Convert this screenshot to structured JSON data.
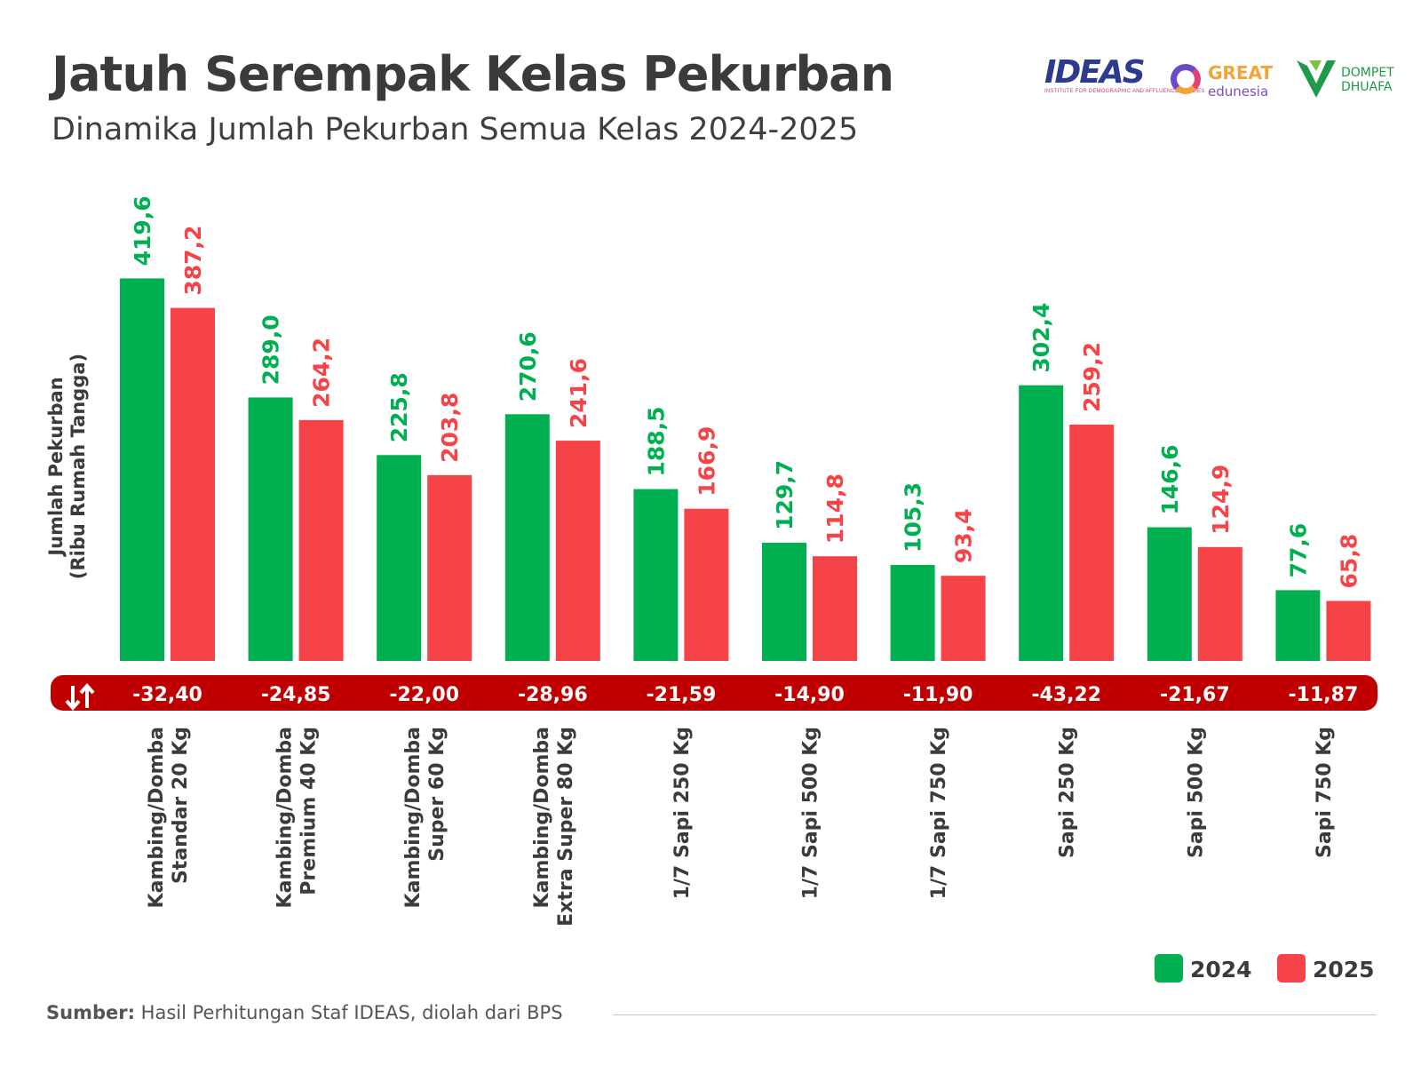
{
  "header": {
    "title": "Jatuh Serempak Kelas Pekurban",
    "subtitle": "Dinamika Jumlah Pekurban Semua Kelas 2024-2025"
  },
  "logos": {
    "ideas": "IDEAS",
    "ideas_sub": "INSTITUTE FOR DEMOGRAPHIC AND AFFLUENCE STUDIES",
    "great": "GREAT",
    "great_sub": "edunesia",
    "dd_line1": "DOMPET",
    "dd_line2": "DHUAFA"
  },
  "footer": {
    "source_label": "Sumber:",
    "source_text": " Hasil Perhitungan Staf IDEAS, diolah dari BPS"
  },
  "colors": {
    "series_2024": "#00b050",
    "series_2025": "#f64347",
    "diff_band": "#c00000",
    "text_dark": "#3b3b3b"
  },
  "chart_data": {
    "type": "bar",
    "ylabel": "Jumlah Pekurban (Ribu Rumah Tangga)",
    "ylabel_lines": [
      "Jumlah Pekurban",
      "(Ribu Rumah Tangga)"
    ],
    "categories": [
      "Kambing/Domba Standar 20 Kg",
      "Kambing/Domba Premium 40 Kg",
      "Kambing/Domba Super 60 Kg",
      "Kambing/Domba Extra Super 80 Kg",
      "1/7 Sapi 250 Kg",
      "1/7 Sapi 500 Kg",
      "1/7 Sapi 750 Kg",
      "Sapi 250 Kg",
      "Sapi 500 Kg",
      "Sapi 750 Kg"
    ],
    "category_lines": [
      [
        "Kambing/Domba",
        "Standar 20 Kg"
      ],
      [
        "Kambing/Domba",
        "Premium 40 Kg"
      ],
      [
        "Kambing/Domba",
        "Super 60 Kg"
      ],
      [
        "Kambing/Domba",
        "Extra Super 80 Kg"
      ],
      [
        "1/7 Sapi 250 Kg"
      ],
      [
        "1/7 Sapi 500 Kg"
      ],
      [
        "1/7 Sapi 750 Kg"
      ],
      [
        "Sapi 250 Kg"
      ],
      [
        "Sapi 500 Kg"
      ],
      [
        "Sapi 750 Kg"
      ]
    ],
    "series": [
      {
        "name": "2024",
        "values": [
          419.6,
          289.0,
          225.8,
          270.6,
          188.5,
          129.7,
          105.3,
          302.4,
          146.6,
          77.6
        ],
        "labels": [
          "419,6",
          "289,0",
          "225,8",
          "270,6",
          "188,5",
          "129,7",
          "105,3",
          "302,4",
          "146,6",
          "77,6"
        ]
      },
      {
        "name": "2025",
        "values": [
          387.2,
          264.2,
          203.8,
          241.6,
          166.9,
          114.8,
          93.4,
          259.2,
          124.9,
          65.8
        ],
        "labels": [
          "387,2",
          "264,2",
          "203,8",
          "241,6",
          "166,9",
          "114,8",
          "93,4",
          "259,2",
          "124,9",
          "65,8"
        ]
      }
    ],
    "differences": [
      -32.4,
      -24.85,
      -22.0,
      -28.96,
      -21.59,
      -14.9,
      -11.9,
      -43.22,
      -21.67,
      -11.87
    ],
    "difference_labels": [
      "-32,40",
      "-24,85",
      "-22,00",
      "-28,96",
      "-21,59",
      "-14,90",
      "-11,90",
      "-43,22",
      "-21,67",
      "-11,87"
    ],
    "difference_icon": "up-down-arrows-icon",
    "legend": {
      "position": "bottom-right",
      "entries": [
        "2024",
        "2025"
      ]
    },
    "ylim": [
      0,
      420
    ],
    "grid": false
  }
}
